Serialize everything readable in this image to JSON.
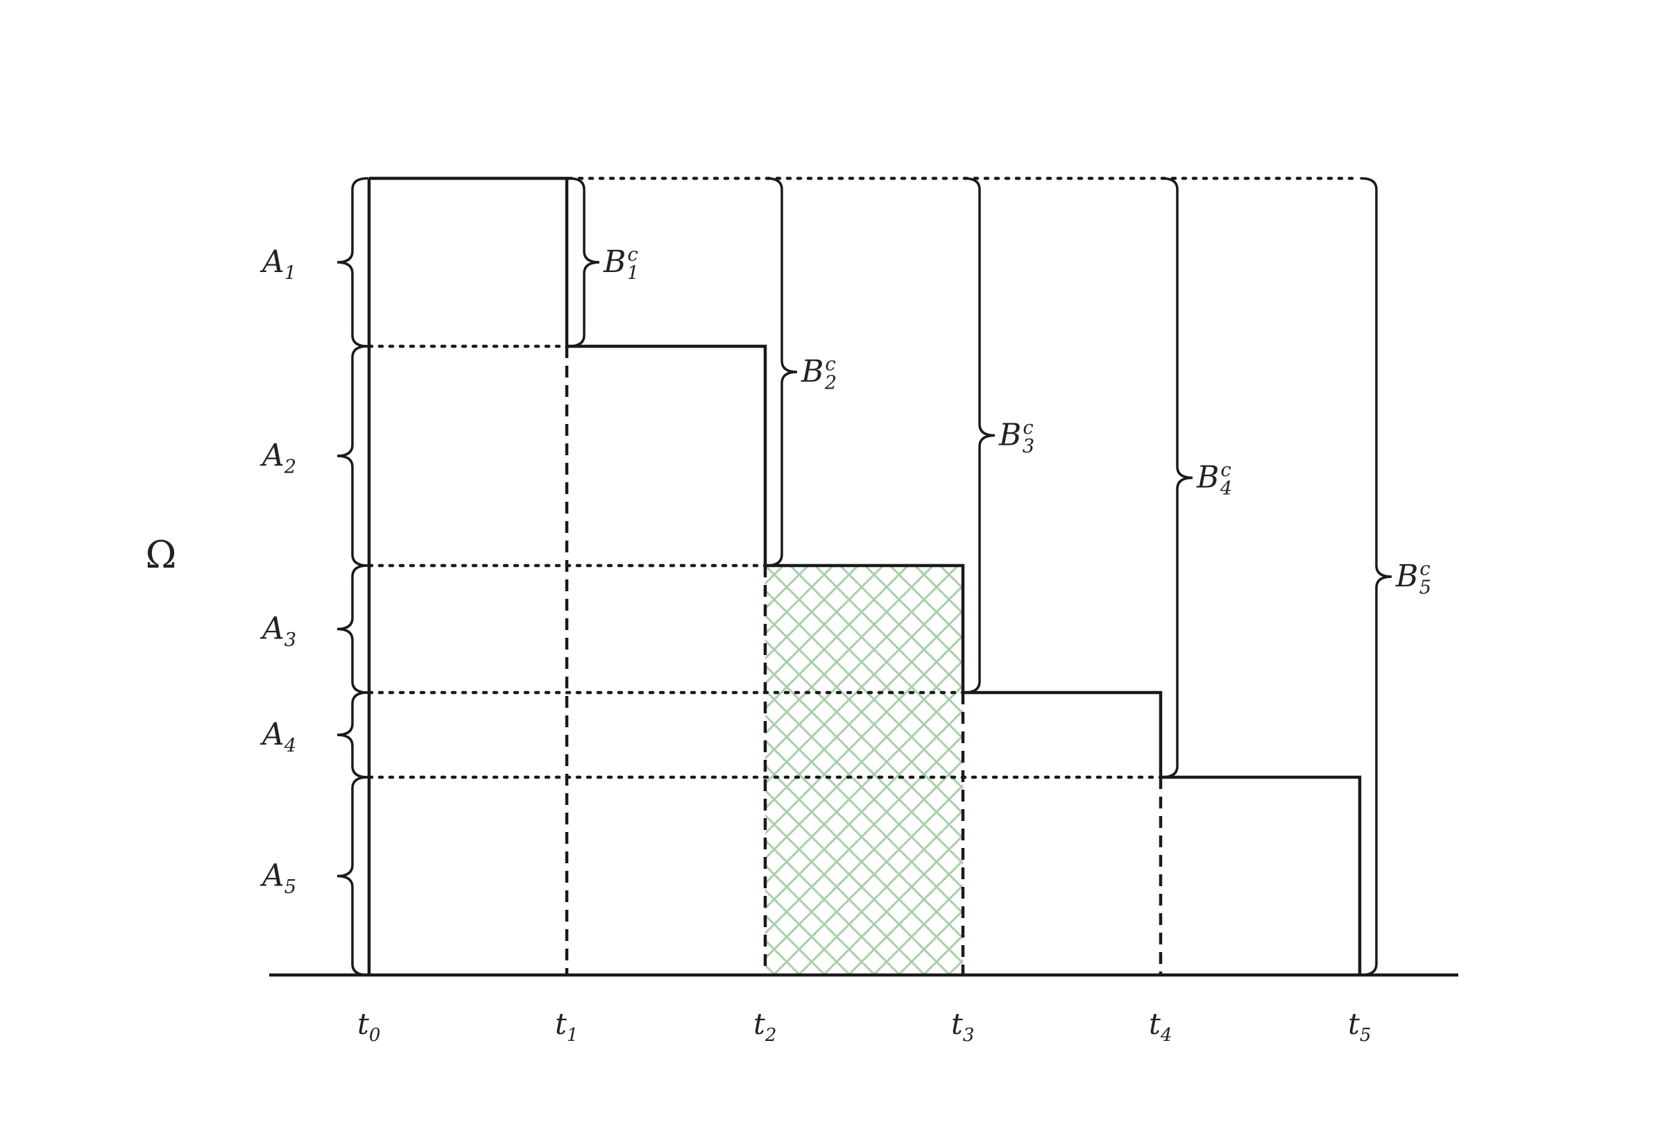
{
  "omega_label": "Ω",
  "time_labels": [
    {
      "base": "t",
      "sub": "0"
    },
    {
      "base": "t",
      "sub": "1"
    },
    {
      "base": "t",
      "sub": "2"
    },
    {
      "base": "t",
      "sub": "3"
    },
    {
      "base": "t",
      "sub": "4"
    },
    {
      "base": "t",
      "sub": "5"
    }
  ],
  "a_labels": [
    {
      "base": "A",
      "sub": "1"
    },
    {
      "base": "A",
      "sub": "2"
    },
    {
      "base": "A",
      "sub": "3"
    },
    {
      "base": "A",
      "sub": "4"
    },
    {
      "base": "A",
      "sub": "5"
    }
  ],
  "b_labels": [
    {
      "base": "B",
      "sub": "1",
      "sup": "c"
    },
    {
      "base": "B",
      "sub": "2",
      "sup": "c"
    },
    {
      "base": "B",
      "sub": "3",
      "sup": "c"
    },
    {
      "base": "B",
      "sub": "4",
      "sup": "c"
    },
    {
      "base": "B",
      "sub": "5",
      "sup": "c"
    }
  ],
  "colors": {
    "line": "#1a1a1a",
    "hatch": "#a8d0a8",
    "text": "#222222"
  },
  "highlighted_interval": {
    "from": "t2",
    "to": "t3",
    "pattern": "crosshatch"
  }
}
